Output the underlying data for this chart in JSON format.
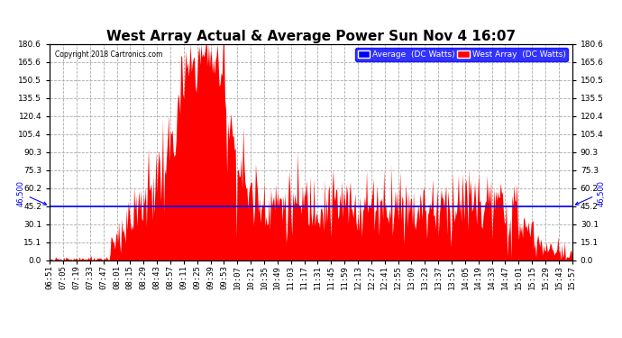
{
  "title": "West Array Actual & Average Power Sun Nov 4 16:07",
  "copyright": "Copyright 2018 Cartronics.com",
  "average_value": 45.2,
  "y_max": 180.6,
  "y_min": 0.0,
  "yticks": [
    0.0,
    15.1,
    30.1,
    45.2,
    60.2,
    75.3,
    90.3,
    105.4,
    120.4,
    135.5,
    150.5,
    165.6,
    180.6
  ],
  "background_color": "#ffffff",
  "plot_bg_color": "#ffffff",
  "grid_color": "#aaaaaa",
  "fill_color": "#ff0000",
  "line_color": "#0000ff",
  "legend_avg_bg": "#0000ff",
  "legend_west_bg": "#ff0000",
  "title_fontsize": 11,
  "tick_fontsize": 6.5,
  "x_labels": [
    "06:51",
    "07:05",
    "07:19",
    "07:33",
    "07:47",
    "08:01",
    "08:15",
    "08:29",
    "08:43",
    "08:57",
    "09:11",
    "09:25",
    "09:39",
    "09:53",
    "10:07",
    "10:21",
    "10:35",
    "10:49",
    "11:03",
    "11:17",
    "11:31",
    "11:45",
    "11:59",
    "12:13",
    "12:27",
    "12:41",
    "12:55",
    "13:09",
    "13:23",
    "13:37",
    "13:51",
    "14:05",
    "14:19",
    "14:33",
    "14:47",
    "15:01",
    "15:15",
    "15:29",
    "15:43",
    "15:57"
  ],
  "base_profile": [
    3,
    3,
    3,
    3,
    3,
    20,
    35,
    50,
    70,
    90,
    150,
    170,
    175,
    148,
    80,
    55,
    50,
    48,
    46,
    48,
    50,
    48,
    46,
    45,
    48,
    50,
    48,
    46,
    44,
    46,
    48,
    50,
    48,
    46,
    40,
    35,
    20,
    15,
    12,
    8
  ],
  "noise_scale": [
    1,
    1,
    1,
    1,
    1,
    8,
    10,
    12,
    18,
    22,
    18,
    15,
    12,
    25,
    20,
    18,
    15,
    15,
    15,
    15,
    15,
    15,
    15,
    15,
    15,
    15,
    15,
    15,
    15,
    15,
    15,
    15,
    15,
    15,
    15,
    12,
    10,
    8,
    6,
    4
  ],
  "seed": 123
}
